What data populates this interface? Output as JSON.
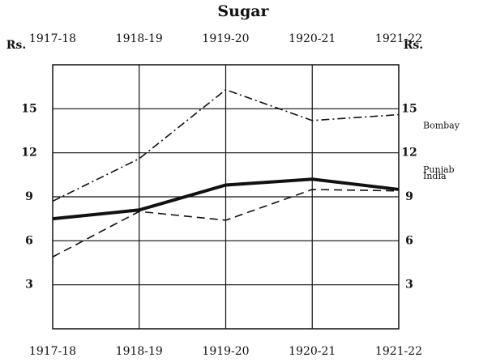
{
  "chart_data": {
    "type": "line",
    "title": "Sugar",
    "y_label": "Rs.",
    "categories": [
      "1917-18",
      "1918-19",
      "1919-20",
      "1920-21",
      "1921-22"
    ],
    "series": [
      {
        "name": "Bombay",
        "color": "#111111",
        "style": "dash-dot",
        "values": [
          8.7,
          11.6,
          16.3,
          14.2,
          14.6
        ]
      },
      {
        "name": "Punjab",
        "color": "#111111",
        "style": "dashed",
        "values": [
          4.9,
          8.0,
          7.4,
          9.5,
          9.4
        ]
      },
      {
        "name": "India",
        "color": "#111111",
        "style": "solid",
        "values": [
          7.5,
          8.1,
          9.8,
          10.2,
          9.5
        ]
      }
    ],
    "ylim": [
      0,
      18
    ],
    "yticks": [
      3,
      6,
      9,
      12,
      15
    ],
    "grid": true
  }
}
